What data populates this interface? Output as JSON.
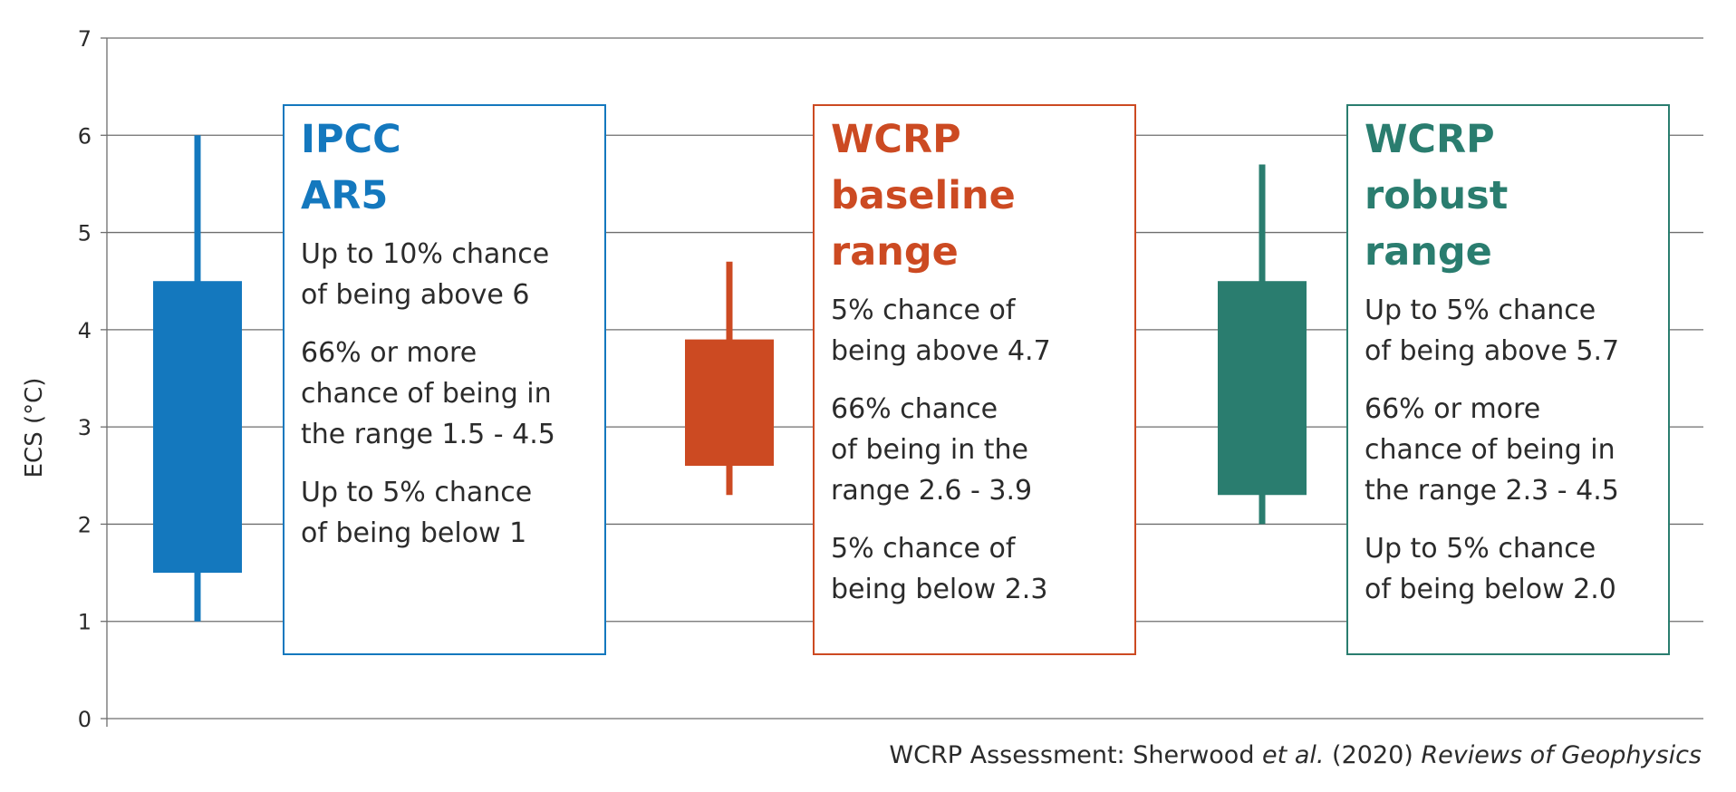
{
  "chart_data": {
    "type": "box",
    "ylabel": "ECS (°C)",
    "ylim": [
      0,
      7
    ],
    "yticks": [
      0,
      1,
      2,
      3,
      4,
      5,
      6,
      7
    ],
    "grid": true,
    "series": [
      {
        "title_lines": [
          "IPCC",
          "AR5"
        ],
        "color": "#1478be",
        "whisker_low": 1.0,
        "box_low": 1.5,
        "box_high": 4.5,
        "whisker_high": 6.0,
        "paragraphs": [
          [
            "Up to 10% chance",
            "of being above 6"
          ],
          [
            "66% or more",
            "chance of being in",
            "the range 1.5 - 4.5"
          ],
          [
            "Up to 5% chance",
            "of being below 1"
          ]
        ]
      },
      {
        "title_lines": [
          "WCRP",
          "baseline",
          "range"
        ],
        "color": "#cc4a22",
        "whisker_low": 2.3,
        "box_low": 2.6,
        "box_high": 3.9,
        "whisker_high": 4.7,
        "paragraphs": [
          [
            "5% chance of",
            "being above 4.7"
          ],
          [
            "66% chance",
            "of being in the",
            "range 2.6 - 3.9"
          ],
          [
            "5% chance of",
            "being below 2.3"
          ]
        ]
      },
      {
        "title_lines": [
          "WCRP",
          "robust",
          "range"
        ],
        "color": "#2a7d6f",
        "whisker_low": 2.0,
        "box_low": 2.3,
        "box_high": 4.5,
        "whisker_high": 5.7,
        "paragraphs": [
          [
            "Up to 5% chance",
            "of being above 5.7"
          ],
          [
            "66% or more",
            "chance of being in",
            "the range 2.3 - 4.5"
          ],
          [
            "Up to 5% chance",
            "of being below 2.0"
          ]
        ]
      }
    ],
    "source": {
      "prefix": "WCRP Assessment: Sherwood ",
      "italic1": "et al.",
      "middle": " (2020) ",
      "italic2": "Reviews of Geophysics"
    }
  }
}
